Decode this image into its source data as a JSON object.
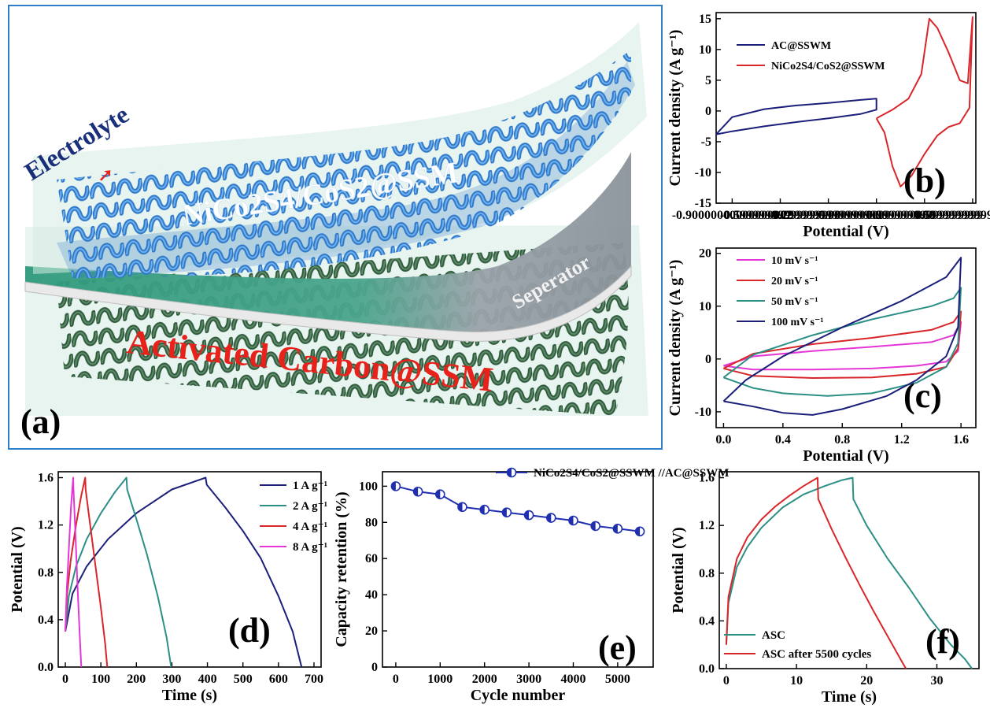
{
  "panel_a": {
    "label": "(a)",
    "text_electrolyte": "Electrolyte",
    "text_cathode": "NiCo2S4/CoS2@SSM",
    "text_separator": "Seperator",
    "text_anode": "Activated Carbon@SSM",
    "colors": {
      "cathode_mesh": "#2e78c9",
      "anode_mesh": "#2f5a3c",
      "red_text": "#e8211a",
      "electrolyte_text": "#1a2f7a"
    }
  },
  "chart_data": [
    {
      "id": "b",
      "panel_label": "(b)",
      "type": "line",
      "xlabel": "Potential (V)",
      "ylabel": "Current density (A g⁻¹)",
      "xlim": [
        -1.0,
        0.62
      ],
      "ylim": [
        -15,
        16
      ],
      "xticks": [
        -0.9,
        -0.6,
        -0.3,
        0.0,
        0.3,
        0.6
      ],
      "yticks": [
        -15,
        -10,
        -5,
        0,
        5,
        10,
        15
      ],
      "legend_position": "top-left",
      "series": [
        {
          "name": "AC@SSWM",
          "color": "#1b1f7a",
          "x": [
            -1.0,
            -0.9,
            -0.7,
            -0.5,
            -0.3,
            -0.1,
            0.0,
            0.0,
            -0.1,
            -0.3,
            -0.5,
            -0.7,
            -0.9,
            -1.0
          ],
          "y": [
            -3.8,
            -1.0,
            0.3,
            0.9,
            1.3,
            1.8,
            2.0,
            0.2,
            -0.5,
            -1.2,
            -1.8,
            -2.5,
            -3.3,
            -3.8
          ]
        },
        {
          "name": "NiCo2S4/CoS2@SSWM",
          "color": "#d8262a",
          "x": [
            0.0,
            0.1,
            0.2,
            0.28,
            0.33,
            0.38,
            0.45,
            0.52,
            0.57,
            0.6,
            0.58,
            0.52,
            0.45,
            0.38,
            0.3,
            0.22,
            0.15,
            0.1,
            0.05,
            0.0
          ],
          "y": [
            -1.2,
            0.2,
            2.0,
            6.0,
            15.0,
            13.5,
            9.5,
            5.0,
            4.5,
            15.3,
            0.5,
            -2.0,
            -2.6,
            -4.0,
            -7.0,
            -10.5,
            -12.3,
            -9.0,
            -3.5,
            -1.2
          ]
        }
      ]
    },
    {
      "id": "c",
      "panel_label": "(c)",
      "type": "line",
      "xlabel": "Potential (V)",
      "ylabel": "Current density (A g⁻¹)",
      "xlim": [
        -0.05,
        1.7
      ],
      "ylim": [
        -13,
        21
      ],
      "xticks": [
        0.0,
        0.4,
        0.8,
        1.2,
        1.6
      ],
      "yticks": [
        -10,
        0,
        10,
        20
      ],
      "legend_position": "top-left",
      "series": [
        {
          "name": "10 mV s⁻¹",
          "color": "#e436d6",
          "x": [
            0.0,
            0.2,
            0.6,
            1.0,
            1.4,
            1.55,
            1.6,
            1.58,
            1.5,
            1.3,
            1.0,
            0.6,
            0.2,
            0.0
          ],
          "y": [
            -1.3,
            0.5,
            1.5,
            2.3,
            3.2,
            4.5,
            7.0,
            1.5,
            -0.5,
            -1.3,
            -1.8,
            -2.0,
            -2.0,
            -1.3
          ]
        },
        {
          "name": "20 mV s⁻¹",
          "color": "#d8262a",
          "x": [
            0.0,
            0.2,
            0.6,
            1.0,
            1.4,
            1.55,
            1.6,
            1.58,
            1.5,
            1.3,
            1.0,
            0.6,
            0.2,
            0.0
          ],
          "y": [
            -1.8,
            1.0,
            2.8,
            4.0,
            5.5,
            7.0,
            9.0,
            2.0,
            -1.5,
            -2.8,
            -3.5,
            -3.6,
            -3.2,
            -1.8
          ]
        },
        {
          "name": "50 mV s⁻¹",
          "color": "#2c8f86",
          "x": [
            0.0,
            0.2,
            0.6,
            1.0,
            1.4,
            1.55,
            1.6,
            1.58,
            1.5,
            1.3,
            1.0,
            0.7,
            0.4,
            0.2,
            0.0
          ],
          "y": [
            -3.5,
            0.8,
            4.5,
            7.5,
            10.0,
            11.5,
            13.5,
            3.0,
            -1.5,
            -4.5,
            -6.5,
            -7.0,
            -6.5,
            -5.5,
            -3.5
          ]
        },
        {
          "name": "100 mV s⁻¹",
          "color": "#1b1f7a",
          "x": [
            0.0,
            0.15,
            0.4,
            0.8,
            1.2,
            1.5,
            1.6,
            1.58,
            1.5,
            1.3,
            1.1,
            0.8,
            0.6,
            0.4,
            0.2,
            0.0
          ],
          "y": [
            -8.0,
            -4.0,
            0.5,
            6.0,
            11.0,
            15.5,
            19.2,
            6.0,
            0.5,
            -4.0,
            -7.0,
            -9.5,
            -10.6,
            -10.2,
            -9.0,
            -8.0
          ]
        }
      ]
    },
    {
      "id": "d",
      "panel_label": "(d)",
      "type": "line",
      "xlabel": "Time (s)",
      "ylabel": "Potential (V)",
      "xlim": [
        -20,
        720
      ],
      "ylim": [
        0.0,
        1.65
      ],
      "xticks": [
        0,
        100,
        200,
        300,
        400,
        500,
        600,
        700
      ],
      "yticks": [
        0.0,
        0.4,
        0.8,
        1.2,
        1.6
      ],
      "legend_position": "top-right",
      "series": [
        {
          "name": "1 A g⁻¹",
          "color": "#1b1f7a",
          "x": [
            0,
            20,
            60,
            120,
            200,
            300,
            395,
            398,
            450,
            500,
            550,
            600,
            640,
            665
          ],
          "y": [
            0.3,
            0.62,
            0.85,
            1.08,
            1.3,
            1.5,
            1.6,
            1.54,
            1.35,
            1.15,
            0.92,
            0.6,
            0.3,
            0.0
          ]
        },
        {
          "name": "2 A g⁻¹",
          "color": "#2c8f86",
          "x": [
            0,
            10,
            30,
            60,
            100,
            140,
            172,
            174,
            200,
            230,
            260,
            285,
            298
          ],
          "y": [
            0.3,
            0.6,
            0.85,
            1.08,
            1.3,
            1.48,
            1.6,
            1.5,
            1.25,
            0.95,
            0.6,
            0.25,
            0.0
          ]
        },
        {
          "name": "4 A g⁻¹",
          "color": "#d8262a",
          "x": [
            0,
            5,
            15,
            30,
            45,
            56,
            57,
            70,
            85,
            100,
            112,
            118
          ],
          "y": [
            0.3,
            0.62,
            0.9,
            1.2,
            1.45,
            1.6,
            1.5,
            1.2,
            0.85,
            0.5,
            0.2,
            0.0
          ]
        },
        {
          "name": "8 A g⁻¹",
          "color": "#e436d6",
          "x": [
            0,
            4,
            10,
            16,
            22,
            23,
            28,
            34,
            40,
            45
          ],
          "y": [
            0.3,
            0.65,
            1.0,
            1.35,
            1.6,
            1.5,
            1.15,
            0.7,
            0.3,
            0.0
          ]
        }
      ]
    },
    {
      "id": "e",
      "panel_label": "(e)",
      "type": "scatter",
      "xlabel": "Cycle number",
      "ylabel": "Capacity retention (%)",
      "xlim": [
        -300,
        5800
      ],
      "ylim": [
        0,
        108
      ],
      "xticks": [
        0,
        1000,
        2000,
        3000,
        4000,
        5000
      ],
      "yticks": [
        0,
        20,
        40,
        60,
        80,
        100
      ],
      "legend_position": "top-right",
      "series": [
        {
          "name": "NiCo2S4/CoS2@SSWM //AC@SSWM",
          "color": "#1f2fb0",
          "x": [
            0,
            500,
            1000,
            1500,
            2000,
            2500,
            3000,
            3500,
            4000,
            4500,
            5000,
            5500
          ],
          "y": [
            100,
            97,
            95.5,
            88.5,
            87,
            85.5,
            84,
            82.5,
            81,
            78,
            76.5,
            75
          ]
        }
      ]
    },
    {
      "id": "f",
      "panel_label": "(f)",
      "type": "line",
      "xlabel": "Time (s)",
      "ylabel": "Potential (V)",
      "xlim": [
        -1,
        36
      ],
      "ylim": [
        0.0,
        1.65
      ],
      "xticks": [
        0,
        10,
        20,
        30
      ],
      "yticks": [
        0.0,
        0.4,
        0.8,
        1.2,
        1.6
      ],
      "legend_position": "bottom-left",
      "series": [
        {
          "name": "ASC",
          "color": "#2c8f86",
          "x": [
            0,
            0.3,
            1.5,
            3,
            5,
            8,
            11,
            14,
            16.5,
            18,
            18.1,
            20,
            23,
            26,
            29,
            32,
            34,
            35
          ],
          "y": [
            0.2,
            0.55,
            0.85,
            1.02,
            1.18,
            1.35,
            1.46,
            1.53,
            1.58,
            1.6,
            1.42,
            1.2,
            0.92,
            0.68,
            0.42,
            0.2,
            0.08,
            0.0
          ]
        },
        {
          "name": "ASC after 5500 cycles",
          "color": "#d8262a",
          "x": [
            0,
            0.3,
            1.5,
            3,
            5,
            7,
            9,
            11,
            13,
            13.1,
            15,
            17,
            19,
            21,
            23,
            25,
            25.6
          ],
          "y": [
            0.2,
            0.6,
            0.92,
            1.1,
            1.25,
            1.36,
            1.45,
            1.53,
            1.6,
            1.42,
            1.17,
            0.93,
            0.7,
            0.48,
            0.27,
            0.06,
            0.0
          ]
        }
      ]
    }
  ]
}
